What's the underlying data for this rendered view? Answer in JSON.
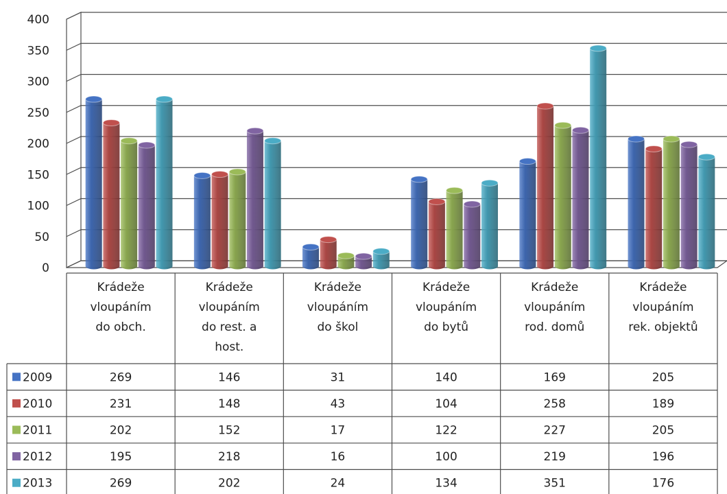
{
  "chart_data": {
    "type": "bar",
    "style": "3d-cylinder",
    "title": "",
    "xlabel": "",
    "ylabel": "",
    "ylim": [
      0,
      400
    ],
    "yticks": [
      0,
      50,
      100,
      150,
      200,
      250,
      300,
      350,
      400
    ],
    "grid": true,
    "legend": "data-table",
    "categories": [
      [
        "Krádeže",
        "vloupáním",
        "do obch."
      ],
      [
        "Krádeže",
        "vloupáním",
        "do rest. a",
        "host."
      ],
      [
        "Krádeže",
        "vloupáním",
        "do škol"
      ],
      [
        "Krádeže",
        "vloupáním",
        "do bytů"
      ],
      [
        "Krádeže",
        "vloupáním",
        "rod. domů"
      ],
      [
        "Krádeže",
        "vloupáním",
        "rek. objektů"
      ]
    ],
    "series": [
      {
        "name": "2009",
        "color": "#4573c4",
        "values": [
          269,
          146,
          31,
          140,
          169,
          205
        ]
      },
      {
        "name": "2010",
        "color": "#c0504d",
        "values": [
          231,
          148,
          43,
          104,
          258,
          189
        ]
      },
      {
        "name": "2011",
        "color": "#9bbb59",
        "values": [
          202,
          152,
          17,
          122,
          227,
          205
        ]
      },
      {
        "name": "2012",
        "color": "#8064a2",
        "values": [
          195,
          218,
          16,
          100,
          219,
          196
        ]
      },
      {
        "name": "2013",
        "color": "#4bacc6",
        "values": [
          269,
          202,
          24,
          134,
          351,
          176
        ]
      }
    ]
  }
}
